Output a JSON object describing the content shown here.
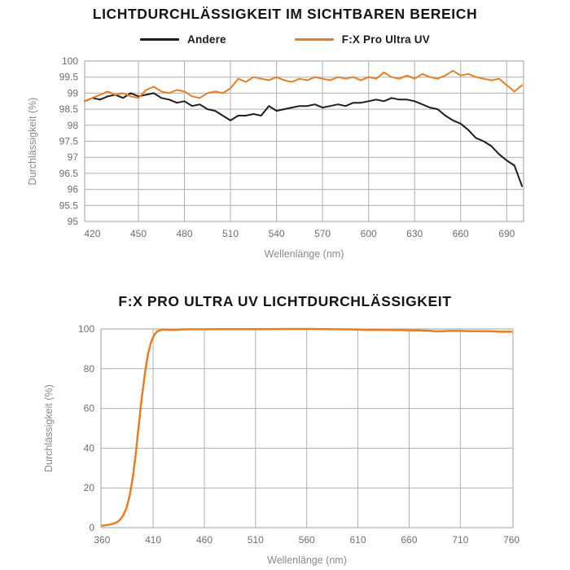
{
  "page": {
    "background": "#ffffff"
  },
  "colors": {
    "orange": "#e87e24",
    "black_line": "#1e1e1e",
    "grid": "#afafaf",
    "tick_text": "#6f6f6f",
    "axis_title_text": "#8a8a8a",
    "title_text": "#151515"
  },
  "chart_data": [
    {
      "type": "line",
      "title": "LICHTDURCHLÄSSIGKEIT IM SICHTBAREN BEREICH",
      "xlabel": "Wellenlänge (nm)",
      "ylabel": "Durchlässigkeit (%)",
      "xlim": [
        415,
        701
      ],
      "ylim": [
        95,
        100
      ],
      "xticks": [
        420,
        450,
        480,
        510,
        540,
        570,
        600,
        630,
        660,
        690
      ],
      "xgridlines": [
        450,
        480,
        510,
        540,
        570,
        600,
        630,
        660,
        690
      ],
      "yticks": [
        95,
        95.5,
        96,
        96.5,
        97,
        97.5,
        98,
        98.5,
        99,
        99.5,
        100
      ],
      "grid": true,
      "legend_position": "top",
      "x": [
        415,
        420,
        425,
        430,
        435,
        440,
        445,
        450,
        455,
        460,
        465,
        470,
        475,
        480,
        485,
        490,
        495,
        500,
        505,
        510,
        515,
        520,
        525,
        530,
        535,
        540,
        545,
        550,
        555,
        560,
        565,
        570,
        575,
        580,
        585,
        590,
        595,
        600,
        605,
        610,
        615,
        620,
        625,
        630,
        635,
        640,
        645,
        650,
        655,
        660,
        665,
        670,
        675,
        680,
        685,
        690,
        695,
        700
      ],
      "series": [
        {
          "name": "Andere",
          "color": "#1e1e1e",
          "values": [
            98.75,
            98.85,
            98.8,
            98.9,
            98.95,
            98.85,
            99.0,
            98.9,
            98.95,
            99.0,
            98.85,
            98.8,
            98.7,
            98.75,
            98.6,
            98.65,
            98.5,
            98.45,
            98.3,
            98.15,
            98.3,
            98.3,
            98.35,
            98.3,
            98.6,
            98.45,
            98.5,
            98.55,
            98.6,
            98.6,
            98.65,
            98.55,
            98.6,
            98.65,
            98.6,
            98.7,
            98.7,
            98.75,
            98.8,
            98.75,
            98.85,
            98.8,
            98.8,
            98.75,
            98.65,
            98.55,
            98.5,
            98.3,
            98.15,
            98.05,
            97.85,
            97.6,
            97.5,
            97.35,
            97.1,
            96.9,
            96.75,
            96.1
          ]
        },
        {
          "name": "F:X Pro Ultra UV",
          "color": "#e87e24",
          "values": [
            98.75,
            98.85,
            98.95,
            99.05,
            98.95,
            99.0,
            98.9,
            98.85,
            99.1,
            99.2,
            99.05,
            99.0,
            99.1,
            99.05,
            98.9,
            98.85,
            99.0,
            99.05,
            99.0,
            99.15,
            99.45,
            99.35,
            99.5,
            99.45,
            99.4,
            99.5,
            99.4,
            99.35,
            99.45,
            99.4,
            99.5,
            99.45,
            99.4,
            99.5,
            99.45,
            99.5,
            99.4,
            99.5,
            99.45,
            99.65,
            99.5,
            99.45,
            99.55,
            99.45,
            99.6,
            99.5,
            99.45,
            99.55,
            99.7,
            99.55,
            99.6,
            99.5,
            99.45,
            99.4,
            99.45,
            99.25,
            99.05,
            99.25
          ]
        }
      ]
    },
    {
      "type": "line",
      "title": "F:X PRO ULTRA UV LICHTDURCHLÄSSIGKEIT",
      "xlabel": "Wellenlänge (nm)",
      "ylabel": "Durchlässigkeit (%)",
      "xlim": [
        359,
        761.5
      ],
      "ylim": [
        0,
        100
      ],
      "xticks": [
        360,
        410,
        460,
        510,
        560,
        610,
        660,
        710,
        760
      ],
      "xgridlines": [
        410,
        460,
        510,
        560,
        610,
        660,
        710
      ],
      "yticks": [
        0,
        20,
        40,
        60,
        80,
        100
      ],
      "grid": true,
      "legend_position": "none",
      "x": [
        360,
        365,
        370,
        375,
        378,
        381,
        384,
        387,
        390,
        393,
        396,
        399,
        402,
        405,
        408,
        411,
        414,
        417,
        420,
        425,
        430,
        435,
        440,
        450,
        460,
        470,
        480,
        490,
        500,
        510,
        520,
        530,
        540,
        550,
        560,
        570,
        580,
        590,
        600,
        610,
        615,
        620,
        625,
        630,
        635,
        640,
        645,
        650,
        655,
        660,
        665,
        670,
        675,
        680,
        685,
        690,
        695,
        700,
        710,
        720,
        730,
        740,
        750,
        760
      ],
      "series": [
        {
          "name": "F:X Pro Ultra UV",
          "color": "#e87e24",
          "values": [
            1.0,
            1.3,
            1.8,
            2.8,
            4.2,
            6.5,
            10,
            16,
            25,
            37,
            52,
            66,
            78,
            87.5,
            93.5,
            97,
            98.8,
            99.4,
            99.7,
            99.55,
            99.45,
            99.7,
            99.8,
            99.85,
            99.85,
            99.9,
            99.9,
            99.9,
            99.9,
            99.9,
            99.9,
            99.95,
            100,
            100,
            100,
            99.95,
            99.9,
            99.85,
            99.8,
            99.7,
            99.6,
            99.5,
            99.55,
            99.6,
            99.5,
            99.45,
            99.5,
            99.45,
            99.4,
            99.35,
            99.3,
            99.25,
            99.15,
            99.05,
            98.9,
            98.8,
            98.95,
            99.05,
            99.0,
            98.9,
            98.85,
            98.8,
            98.7,
            98.6
          ]
        }
      ]
    }
  ]
}
